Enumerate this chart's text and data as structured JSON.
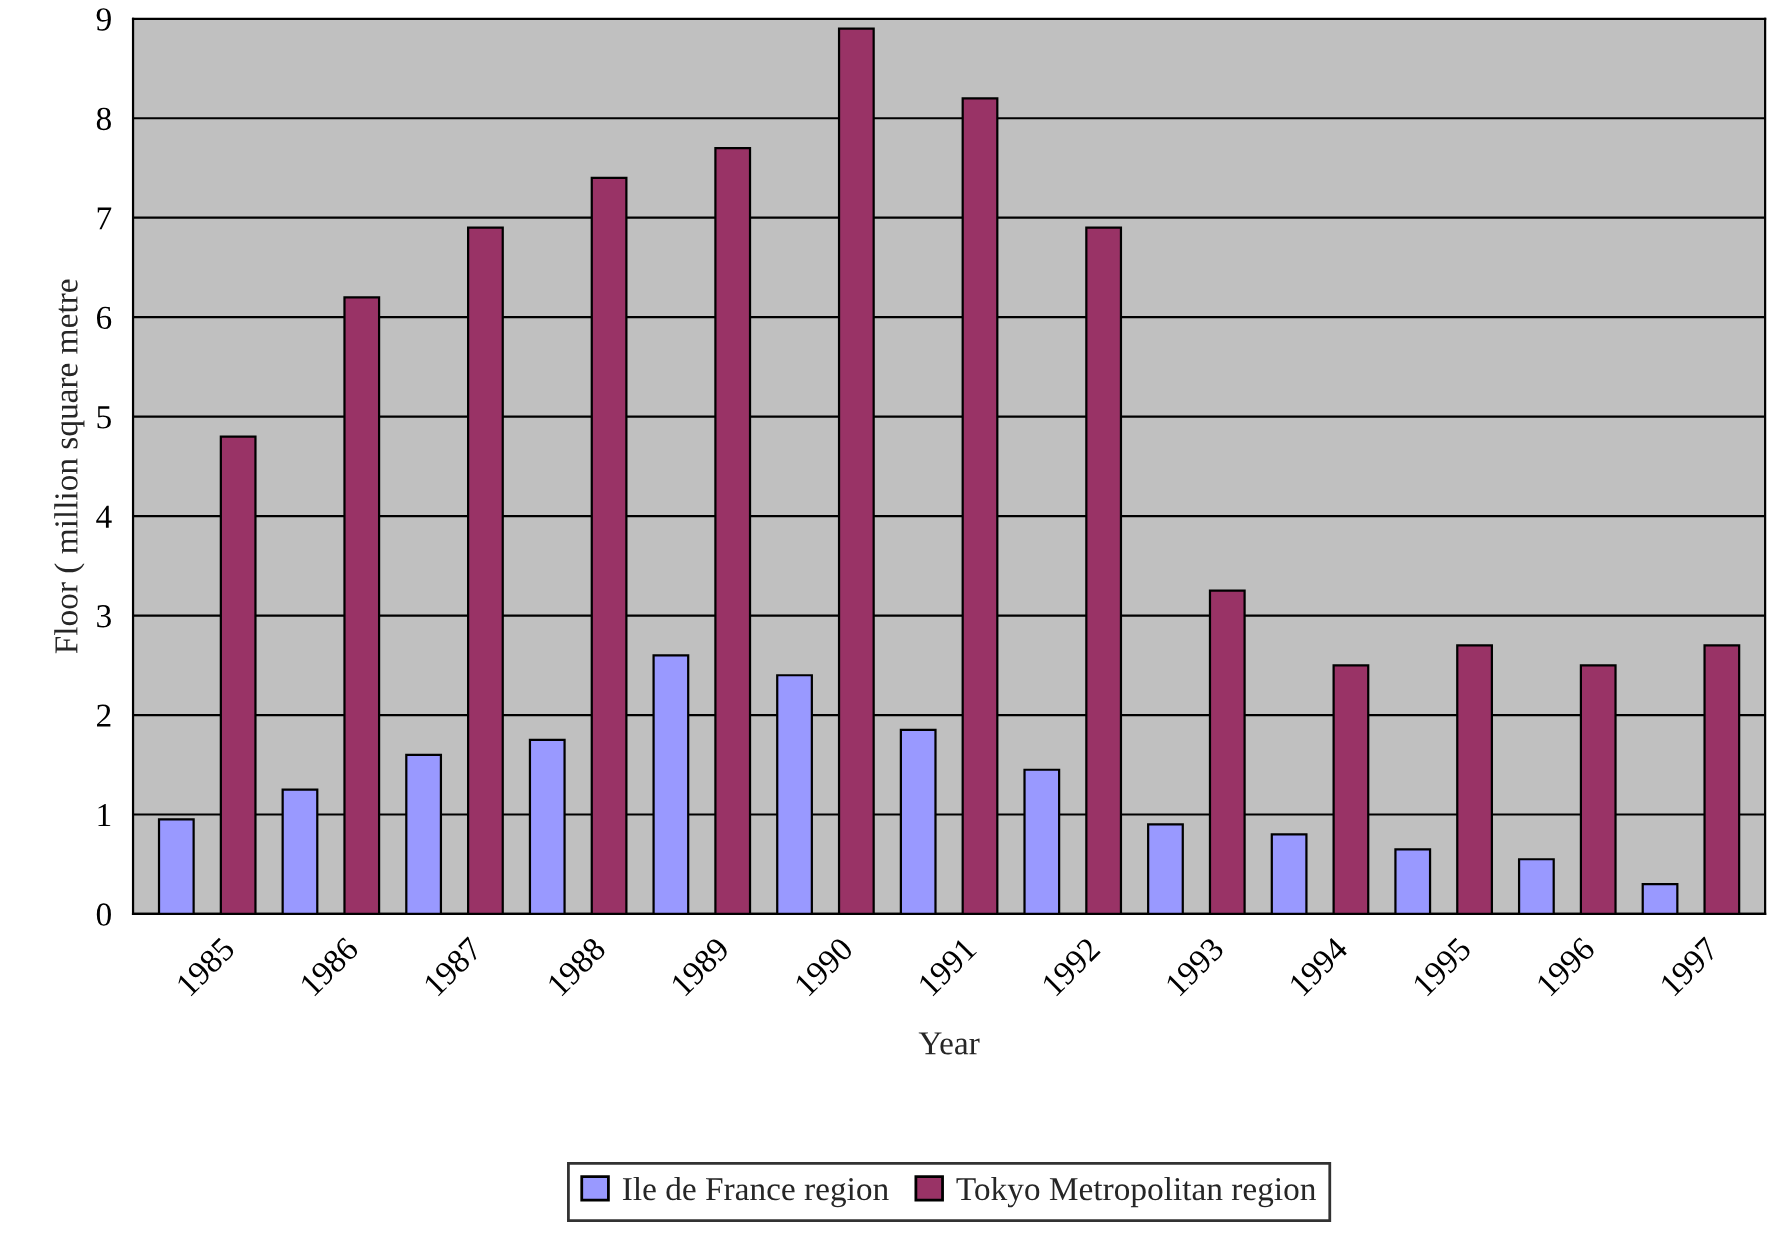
{
  "chart_data": {
    "type": "bar",
    "xlabel": "Year",
    "ylabel": "Floor ( million square metre",
    "categories": [
      "1985",
      "1986",
      "1987",
      "1988",
      "1989",
      "1990",
      "1991",
      "1992",
      "1993",
      "1994",
      "1995",
      "1996",
      "1997"
    ],
    "series": [
      {
        "name": "Ile de France region",
        "color": "#9999ff",
        "values": [
          0.95,
          1.25,
          1.6,
          1.75,
          2.6,
          2.4,
          1.85,
          1.45,
          0.9,
          0.8,
          0.65,
          0.55,
          0.3
        ]
      },
      {
        "name": "Tokyo Metropolitan region",
        "color": "#993366",
        "values": [
          4.8,
          6.2,
          6.9,
          7.4,
          7.7,
          8.9,
          8.2,
          6.9,
          3.25,
          2.5,
          2.7,
          2.5,
          2.7
        ]
      }
    ],
    "ylim": [
      0,
      9
    ],
    "yticks": [
      0,
      1,
      2,
      3,
      4,
      5,
      6,
      7,
      8,
      9
    ],
    "grid": "y",
    "legend": "bottom"
  }
}
